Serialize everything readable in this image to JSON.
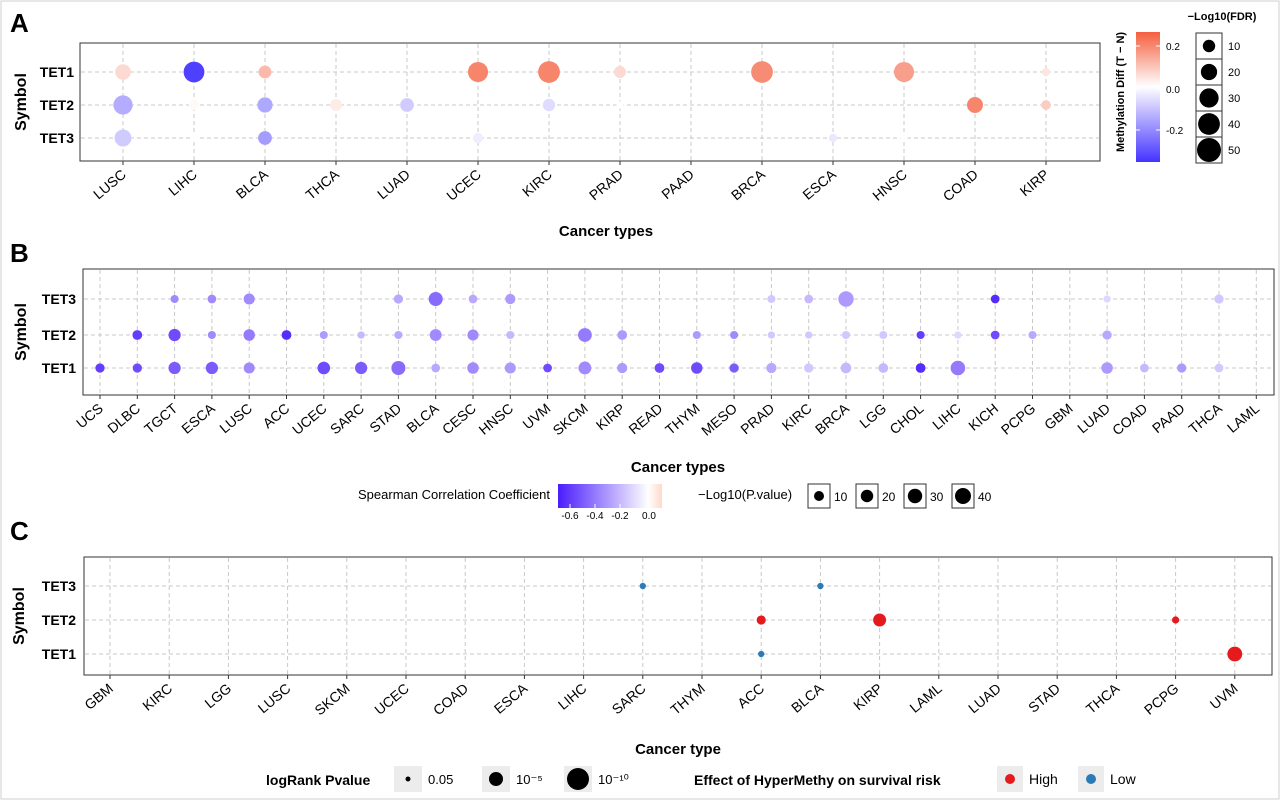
{
  "colors": {
    "corr_low": "#4a1dfc",
    "corr_mid": "#ffffff",
    "corr_high": "#ffd9c9",
    "diff_low": "#4433ff",
    "diff_high": "#f45f3e",
    "high": "#e41a1c",
    "low": "#2a7bb6"
  },
  "chart_data": [
    {
      "panel": "A",
      "type": "scatter",
      "xlabel": "Cancer types",
      "ylabel": "Symbol",
      "categories": [
        "LUSC",
        "LIHC",
        "BLCA",
        "THCA",
        "LUAD",
        "UCEC",
        "KIRC",
        "PRAD",
        "PAAD",
        "BRCA",
        "ESCA",
        "HNSC",
        "COAD",
        "KIRP"
      ],
      "symbols": [
        "TET1",
        "TET2",
        "TET3"
      ],
      "grid": true,
      "color_legend": {
        "title": "Methylation Diff (T − N)",
        "ticks": [
          "0.2",
          "0.0",
          "-0.2"
        ],
        "min": -0.35,
        "max": 0.25
      },
      "size_legend": {
        "title": "−Log10(FDR)",
        "values": [
          "10",
          "20",
          "30",
          "40",
          "50"
        ]
      },
      "points": [
        {
          "x": "LUSC",
          "y": "TET1",
          "diff": 0.06,
          "fdr": 18
        },
        {
          "x": "LUSC",
          "y": "TET2",
          "diff": -0.14,
          "fdr": 30
        },
        {
          "x": "LUSC",
          "y": "TET3",
          "diff": -0.09,
          "fdr": 22
        },
        {
          "x": "LIHC",
          "y": "TET1",
          "diff": -0.33,
          "fdr": 36
        },
        {
          "x": "LIHC",
          "y": "TET2",
          "diff": 0.01,
          "fdr": 6
        },
        {
          "x": "LIHC",
          "y": "TET3",
          "diff": 0.0,
          "fdr": 2
        },
        {
          "x": "BLCA",
          "y": "TET1",
          "diff": 0.11,
          "fdr": 11
        },
        {
          "x": "BLCA",
          "y": "TET2",
          "diff": -0.15,
          "fdr": 17
        },
        {
          "x": "BLCA",
          "y": "TET3",
          "diff": -0.17,
          "fdr": 13
        },
        {
          "x": "THCA",
          "y": "TET2",
          "diff": 0.03,
          "fdr": 9
        },
        {
          "x": "LUAD",
          "y": "TET2",
          "diff": -0.09,
          "fdr": 13
        },
        {
          "x": "UCEC",
          "y": "TET1",
          "diff": 0.19,
          "fdr": 33
        },
        {
          "x": "UCEC",
          "y": "TET3",
          "diff": -0.03,
          "fdr": 6
        },
        {
          "x": "KIRC",
          "y": "TET1",
          "diff": 0.19,
          "fdr": 40
        },
        {
          "x": "KIRC",
          "y": "TET2",
          "diff": -0.06,
          "fdr": 10
        },
        {
          "x": "PRAD",
          "y": "TET1",
          "diff": 0.06,
          "fdr": 9
        },
        {
          "x": "PRAD",
          "y": "TET2",
          "diff": 0.0,
          "fdr": 2
        },
        {
          "x": "BRCA",
          "y": "TET1",
          "diff": 0.18,
          "fdr": 40
        },
        {
          "x": "ESCA",
          "y": "TET3",
          "diff": -0.04,
          "fdr": 3
        },
        {
          "x": "HNSC",
          "y": "TET1",
          "diff": 0.15,
          "fdr": 33
        },
        {
          "x": "HNSC",
          "y": "TET3",
          "diff": 0.0,
          "fdr": 2
        },
        {
          "x": "COAD",
          "y": "TET2",
          "diff": 0.19,
          "fdr": 19
        },
        {
          "x": "KIRP",
          "y": "TET1",
          "diff": 0.04,
          "fdr": 3
        },
        {
          "x": "KIRP",
          "y": "TET2",
          "diff": 0.08,
          "fdr": 5
        }
      ]
    },
    {
      "panel": "B",
      "type": "scatter",
      "xlabel": "Cancer types",
      "ylabel": "Symbol",
      "categories": [
        "UCS",
        "DLBC",
        "TGCT",
        "ESCA",
        "LUSC",
        "ACC",
        "UCEC",
        "SARC",
        "STAD",
        "BLCA",
        "CESC",
        "HNSC",
        "UVM",
        "SKCM",
        "KIRP",
        "READ",
        "THYM",
        "MESO",
        "PRAD",
        "KIRC",
        "BRCA",
        "LGG",
        "CHOL",
        "LIHC",
        "KICH",
        "PCPG",
        "GBM",
        "LUAD",
        "COAD",
        "PAAD",
        "THCA",
        "LAML"
      ],
      "symbols": [
        "TET3",
        "TET2",
        "TET1"
      ],
      "grid": true,
      "color_legend": {
        "title": "Spearman Correlation Coefficient",
        "ticks": [
          "-0.6",
          "-0.4",
          "-0.2",
          "0.0"
        ],
        "min": -0.72,
        "max": 0.1
      },
      "size_legend": {
        "title": "−Log10(P.value)",
        "values": [
          "10",
          "20",
          "30",
          "40"
        ]
      },
      "points": [
        {
          "x": "UCS",
          "y": "TET1",
          "r": -0.55,
          "p": 5
        },
        {
          "x": "DLBC",
          "y": "TET2",
          "r": -0.55,
          "p": 6
        },
        {
          "x": "DLBC",
          "y": "TET1",
          "r": -0.5,
          "p": 5
        },
        {
          "x": "TGCT",
          "y": "TET3",
          "r": -0.3,
          "p": 3
        },
        {
          "x": "TGCT",
          "y": "TET2",
          "r": -0.5,
          "p": 12
        },
        {
          "x": "TGCT",
          "y": "TET1",
          "r": -0.45,
          "p": 12
        },
        {
          "x": "ESCA",
          "y": "TET3",
          "r": -0.3,
          "p": 4
        },
        {
          "x": "ESCA",
          "y": "TET2",
          "r": -0.3,
          "p": 3
        },
        {
          "x": "ESCA",
          "y": "TET1",
          "r": -0.45,
          "p": 12
        },
        {
          "x": "LUSC",
          "y": "TET3",
          "r": -0.3,
          "p": 9
        },
        {
          "x": "LUSC",
          "y": "TET2",
          "r": -0.35,
          "p": 10
        },
        {
          "x": "LUSC",
          "y": "TET1",
          "r": -0.3,
          "p": 9
        },
        {
          "x": "ACC",
          "y": "TET2",
          "r": -0.6,
          "p": 6
        },
        {
          "x": "UCEC",
          "y": "TET2",
          "r": -0.25,
          "p": 3
        },
        {
          "x": "UCEC",
          "y": "TET1",
          "r": -0.5,
          "p": 13
        },
        {
          "x": "SARC",
          "y": "TET2",
          "r": -0.15,
          "p": 2
        },
        {
          "x": "SARC",
          "y": "TET1",
          "r": -0.45,
          "p": 12
        },
        {
          "x": "STAD",
          "y": "TET3",
          "r": -0.2,
          "p": 5
        },
        {
          "x": "STAD",
          "y": "TET2",
          "r": -0.2,
          "p": 3
        },
        {
          "x": "STAD",
          "y": "TET1",
          "r": -0.4,
          "p": 18
        },
        {
          "x": "BLCA",
          "y": "TET3",
          "r": -0.4,
          "p": 18
        },
        {
          "x": "BLCA",
          "y": "TET2",
          "r": -0.3,
          "p": 11
        },
        {
          "x": "BLCA",
          "y": "TET1",
          "r": -0.2,
          "p": 4
        },
        {
          "x": "CESC",
          "y": "TET3",
          "r": -0.2,
          "p": 4
        },
        {
          "x": "CESC",
          "y": "TET2",
          "r": -0.3,
          "p": 9
        },
        {
          "x": "CESC",
          "y": "TET1",
          "r": -0.3,
          "p": 10
        },
        {
          "x": "HNSC",
          "y": "TET3",
          "r": -0.25,
          "p": 7
        },
        {
          "x": "HNSC",
          "y": "TET2",
          "r": -0.15,
          "p": 3
        },
        {
          "x": "HNSC",
          "y": "TET1",
          "r": -0.25,
          "p": 9
        },
        {
          "x": "UVM",
          "y": "TET1",
          "r": -0.5,
          "p": 4
        },
        {
          "x": "SKCM",
          "y": "TET2",
          "r": -0.35,
          "p": 17
        },
        {
          "x": "SKCM",
          "y": "TET1",
          "r": -0.3,
          "p": 14
        },
        {
          "x": "KIRP",
          "y": "TET2",
          "r": -0.25,
          "p": 6
        },
        {
          "x": "KIRP",
          "y": "TET1",
          "r": -0.25,
          "p": 7
        },
        {
          "x": "READ",
          "y": "TET1",
          "r": -0.5,
          "p": 6
        },
        {
          "x": "THYM",
          "y": "TET2",
          "r": -0.25,
          "p": 3
        },
        {
          "x": "THYM",
          "y": "TET1",
          "r": -0.5,
          "p": 10
        },
        {
          "x": "MESO",
          "y": "TET2",
          "r": -0.3,
          "p": 3
        },
        {
          "x": "MESO",
          "y": "TET1",
          "r": -0.45,
          "p": 5
        },
        {
          "x": "PRAD",
          "y": "TET3",
          "r": -0.1,
          "p": 3
        },
        {
          "x": "PRAD",
          "y": "TET2",
          "r": -0.1,
          "p": 2
        },
        {
          "x": "PRAD",
          "y": "TET1",
          "r": -0.2,
          "p": 7
        },
        {
          "x": "KIRC",
          "y": "TET3",
          "r": -0.15,
          "p": 4
        },
        {
          "x": "KIRC",
          "y": "TET2",
          "r": -0.1,
          "p": 2
        },
        {
          "x": "KIRC",
          "y": "TET1",
          "r": -0.1,
          "p": 5
        },
        {
          "x": "BRCA",
          "y": "TET3",
          "r": -0.25,
          "p": 23
        },
        {
          "x": "BRCA",
          "y": "TET2",
          "r": -0.1,
          "p": 3
        },
        {
          "x": "BRCA",
          "y": "TET1",
          "r": -0.15,
          "p": 8
        },
        {
          "x": "LGG",
          "y": "TET2",
          "r": -0.1,
          "p": 3
        },
        {
          "x": "LGG",
          "y": "TET1",
          "r": -0.15,
          "p": 6
        },
        {
          "x": "CHOL",
          "y": "TET2",
          "r": -0.55,
          "p": 3
        },
        {
          "x": "CHOL",
          "y": "TET1",
          "r": -0.6,
          "p": 6
        },
        {
          "x": "LIHC",
          "y": "TET2",
          "r": -0.05,
          "p": 2
        },
        {
          "x": "LIHC",
          "y": "TET1",
          "r": -0.35,
          "p": 20
        },
        {
          "x": "KICH",
          "y": "TET3",
          "r": -0.6,
          "p": 4
        },
        {
          "x": "KICH",
          "y": "TET2",
          "r": -0.5,
          "p": 4
        },
        {
          "x": "PCPG",
          "y": "TET2",
          "r": -0.2,
          "p": 3
        },
        {
          "x": "LUAD",
          "y": "TET3",
          "r": -0.05,
          "p": 2
        },
        {
          "x": "LUAD",
          "y": "TET2",
          "r": -0.2,
          "p": 5
        },
        {
          "x": "LUAD",
          "y": "TET1",
          "r": -0.25,
          "p": 10
        },
        {
          "x": "COAD",
          "y": "TET1",
          "r": -0.15,
          "p": 4
        },
        {
          "x": "PAAD",
          "y": "TET1",
          "r": -0.25,
          "p": 5
        },
        {
          "x": "THCA",
          "y": "TET3",
          "r": -0.1,
          "p": 5
        },
        {
          "x": "THCA",
          "y": "TET1",
          "r": -0.1,
          "p": 4
        }
      ]
    },
    {
      "panel": "C",
      "type": "scatter",
      "xlabel": "Cancer type",
      "ylabel": "Symbol",
      "categories": [
        "GBM",
        "KIRC",
        "LGG",
        "LUSC",
        "SKCM",
        "UCEC",
        "COAD",
        "ESCA",
        "LIHC",
        "SARC",
        "THYM",
        "ACC",
        "BLCA",
        "KIRP",
        "LAML",
        "LUAD",
        "STAD",
        "THCA",
        "PCPG",
        "UVM"
      ],
      "symbols": [
        "TET3",
        "TET2",
        "TET1"
      ],
      "grid": true,
      "size_legend": {
        "title": "logRank Pvalue",
        "values": [
          "0.05",
          "10⁻⁵",
          "10⁻¹⁰"
        ]
      },
      "color_legend": {
        "title": "Effect of HyperMethy on survival risk",
        "values": [
          "High",
          "Low"
        ]
      },
      "points": [
        {
          "x": "SARC",
          "y": "TET3",
          "effect": "Low",
          "neglog10p": 2.5
        },
        {
          "x": "BLCA",
          "y": "TET3",
          "effect": "Low",
          "neglog10p": 2.5
        },
        {
          "x": "ACC",
          "y": "TET2",
          "effect": "High",
          "neglog10p": 4
        },
        {
          "x": "KIRP",
          "y": "TET2",
          "effect": "High",
          "neglog10p": 6
        },
        {
          "x": "PCPG",
          "y": "TET2",
          "effect": "High",
          "neglog10p": 3
        },
        {
          "x": "ACC",
          "y": "TET1",
          "effect": "Low",
          "neglog10p": 2.5
        },
        {
          "x": "UVM",
          "y": "TET1",
          "effect": "High",
          "neglog10p": 7
        }
      ]
    }
  ]
}
